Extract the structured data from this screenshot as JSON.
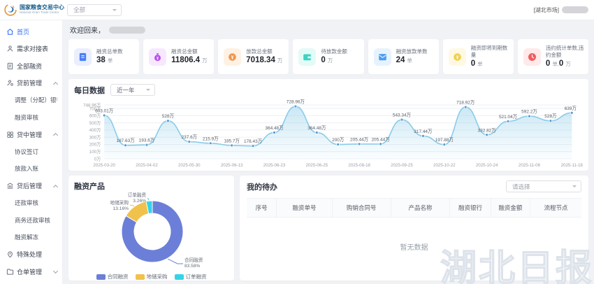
{
  "header": {
    "logo_title": "国家粮食交易中心",
    "logo_subtitle": "National Grain Trade Center",
    "market_filter": "全部",
    "user_prefix": "[湖北市场]"
  },
  "sidebar": {
    "items": [
      {
        "label": "首页",
        "type": "item",
        "icon": "home-icon",
        "active": true
      },
      {
        "label": "需求对接表",
        "type": "item",
        "icon": "user-icon"
      },
      {
        "label": "全部融资",
        "type": "item",
        "icon": "document-list-icon"
      },
      {
        "label": "贷前管理",
        "type": "group",
        "icon": "user-gear-icon",
        "caret": "up"
      },
      {
        "label": "调整（分配）银行",
        "type": "child"
      },
      {
        "label": "融资审核",
        "type": "child"
      },
      {
        "label": "贷中管理",
        "type": "group",
        "icon": "grid-icon",
        "caret": "up"
      },
      {
        "label": "协议签订",
        "type": "child"
      },
      {
        "label": "放款入账",
        "type": "child"
      },
      {
        "label": "贷后管理",
        "type": "group",
        "icon": "bank-icon",
        "caret": "up"
      },
      {
        "label": "还款审核",
        "type": "child"
      },
      {
        "label": "商务还款审核",
        "type": "child"
      },
      {
        "label": "融资解冻",
        "type": "child"
      },
      {
        "label": "特殊处理",
        "type": "item",
        "icon": "location-pin-icon"
      },
      {
        "label": "仓单管理",
        "type": "group",
        "icon": "folder-icon",
        "caret": "down"
      }
    ]
  },
  "main": {
    "greeting": "欢迎回来，",
    "stats": [
      {
        "label": "融资总单数",
        "value": "38",
        "unit": "单",
        "icon": "document-icon",
        "color": "#4d7ef7",
        "bg": "#e9efff"
      },
      {
        "label": "融资总金额",
        "value": "11806.4",
        "unit": "万",
        "icon": "moneybag-icon",
        "color": "#b84df0",
        "bg": "#f6e9ff"
      },
      {
        "label": "放款总金额",
        "value": "7018.34",
        "unit": "万",
        "icon": "coin-icon",
        "color": "#f0964d",
        "bg": "#fff1e3"
      },
      {
        "label": "待放款金额",
        "value": "0",
        "unit": "万",
        "icon": "wallet-icon",
        "color": "#3ed2c4",
        "bg": "#e3fbf7"
      },
      {
        "label": "融资放款单数",
        "value": "24",
        "unit": "单",
        "icon": "envelope-icon",
        "color": "#4d9ff0",
        "bg": "#e6f3ff"
      },
      {
        "label": "融资即将到期数量",
        "value": "0",
        "unit": "单",
        "icon": "gold-coin-icon",
        "color": "#f0cf4d",
        "bg": "#fff9e3"
      },
      {
        "label": "违约统计单数,违约金额",
        "value": "0",
        "unit": "单",
        "extra_value": "0",
        "extra_unit": "万",
        "icon": "clock-icon",
        "color": "#f05d5d",
        "bg": "#ffe9e9"
      }
    ],
    "daily": {
      "title": "每日数据",
      "range": "近一年"
    },
    "products": {
      "title": "融资产品"
    },
    "todo": {
      "title": "我的待办",
      "filter_placeholder": "请选择",
      "columns": [
        "序号",
        "融资单号",
        "购销合同号",
        "产品名称",
        "融资银行",
        "融资金额",
        "流程节点"
      ],
      "empty_text": "暂无数据"
    }
  },
  "chart_data": [
    {
      "type": "line",
      "title": "每日数据",
      "values": [
        603.01,
        187.63,
        193.6,
        528,
        237.6,
        215.9,
        185.7,
        178.43,
        364.48,
        728.96,
        364.48,
        200,
        205.44,
        205.44,
        543.34,
        317.44,
        197.88,
        718.92,
        332.82,
        521.04,
        592.2,
        528,
        639
      ],
      "point_labels": [
        "603.01万",
        "187.63万",
        "193.6万",
        "528万",
        "237.6万",
        "215.9万",
        "185.7万",
        "178.43万",
        "364.48万",
        "728.96万",
        "364.48万",
        "200万",
        "205.44万",
        "205.44万",
        "543.34万",
        "317.44万",
        "197.88万",
        "718.92万",
        "332.82万",
        "521.04万",
        "592.2万",
        "528万",
        "639万"
      ],
      "x_tick_labels": [
        "2025-03-20",
        "2025-04-02",
        "2025-05-30",
        "2025-06-13",
        "2025-06-23",
        "2025-06-25",
        "2025-08-18",
        "2025-09-25",
        "2025-10-22",
        "2025-10-24",
        "2025-11-06",
        "2025-11-18"
      ],
      "x_tick_every": 2,
      "y_ticks": [
        "0万",
        "100万",
        "200万",
        "300万",
        "400万",
        "500万",
        "600万",
        "700万",
        "748.96万"
      ],
      "y_max": 748.96,
      "line_color": "#89cbe8",
      "dot_color": "#5b9bd5",
      "grid": true,
      "area": true
    },
    {
      "type": "pie",
      "title": "融资产品",
      "slices": [
        {
          "name": "合同融资",
          "pct": 83.58,
          "color": "#6c7fd8"
        },
        {
          "name": "地储采购",
          "pct": 13.16,
          "color": "#f0c24b"
        },
        {
          "name": "订单融资",
          "pct": 3.26,
          "color": "#36d3e6"
        }
      ],
      "legend_position": "bottom"
    }
  ],
  "watermark": "湖北日报"
}
